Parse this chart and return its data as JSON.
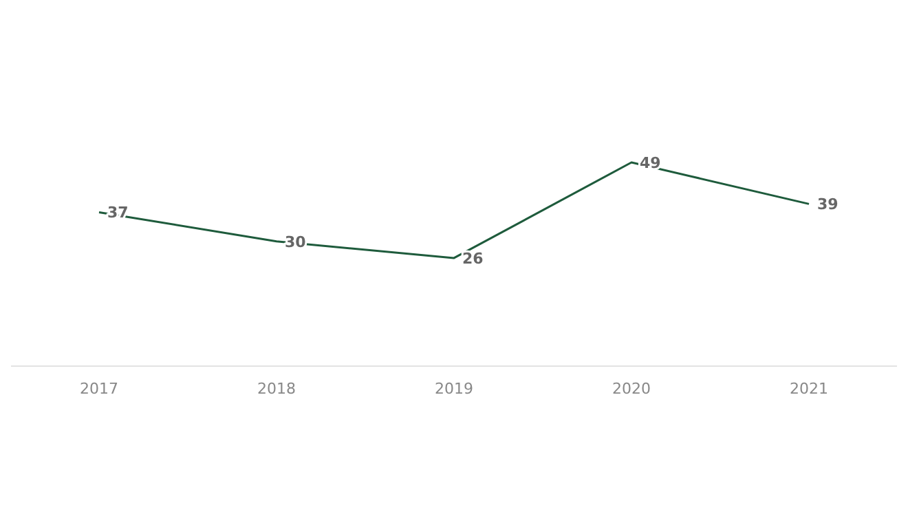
{
  "chart_data": {
    "type": "line",
    "categories": [
      "2017",
      "2018",
      "2019",
      "2020",
      "2021"
    ],
    "series": [
      {
        "color": "#1e5b3c",
        "values": [
          37,
          30,
          26,
          49,
          39
        ]
      }
    ],
    "data_labels": true,
    "marker": "none",
    "line_style": "solid"
  }
}
